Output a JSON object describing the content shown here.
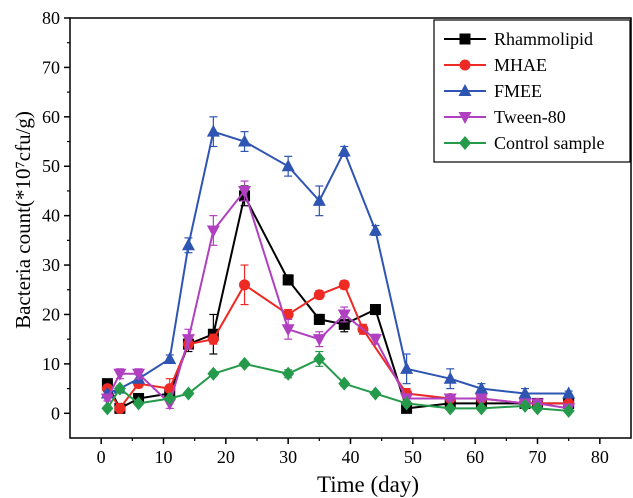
{
  "chart_data": {
    "type": "line",
    "xlabel": "Time (day)",
    "ylabel": "Bacteria count(*10⁷cfu/g)",
    "xlim": [
      -5,
      85
    ],
    "ylim": [
      -5,
      80
    ],
    "xticks": [
      0,
      10,
      20,
      30,
      40,
      50,
      60,
      70,
      80
    ],
    "yticks": [
      0,
      10,
      20,
      30,
      40,
      50,
      60,
      70,
      80
    ],
    "grid": false,
    "legend_position": "top-right",
    "series": [
      {
        "name": "Rhammolipid",
        "color": "#000000",
        "marker": "square",
        "x": [
          1,
          3,
          6,
          11,
          14,
          18,
          23,
          30,
          35,
          39,
          44,
          49,
          56,
          61,
          68,
          70,
          75
        ],
        "y": [
          6,
          1,
          3,
          4,
          14,
          16,
          44,
          27,
          19,
          18,
          21,
          1,
          2,
          2,
          2,
          2,
          2
        ],
        "err": [
          0.5,
          0.3,
          0.5,
          0.5,
          1.5,
          4,
          2,
          1,
          1,
          1.5,
          1,
          0.4,
          0.4,
          0.4,
          0.4,
          0.4,
          0.4
        ]
      },
      {
        "name": "MHAE",
        "color": "#ee2a24",
        "marker": "circle",
        "x": [
          1,
          3,
          6,
          11,
          14,
          18,
          23,
          30,
          35,
          39,
          42,
          49,
          56,
          61,
          68,
          70,
          75
        ],
        "y": [
          5,
          1,
          6,
          5,
          14,
          15,
          26,
          20,
          24,
          26,
          17,
          4,
          3,
          3,
          2,
          2,
          2
        ],
        "err": [
          0.5,
          0.3,
          0.8,
          2,
          1,
          1,
          4,
          1,
          0.8,
          0.8,
          1,
          1,
          0.5,
          0.5,
          0.5,
          0.5,
          0.5
        ]
      },
      {
        "name": "FMEE",
        "color": "#2f55b3",
        "marker": "triangle-up",
        "x": [
          1,
          3,
          6,
          11,
          14,
          18,
          23,
          30,
          35,
          39,
          44,
          49,
          56,
          61,
          68,
          75
        ],
        "y": [
          4,
          5,
          7,
          11,
          34,
          57,
          55,
          50,
          43,
          53,
          37,
          9,
          7,
          5,
          4,
          4
        ],
        "err": [
          0.5,
          0.5,
          0.8,
          0.8,
          1.5,
          3,
          2,
          2,
          3,
          1,
          1,
          3,
          2,
          1,
          1,
          0.5
        ]
      },
      {
        "name": "Tween-80",
        "color": "#b040c0",
        "marker": "triangle-down",
        "x": [
          1,
          3,
          6,
          11,
          14,
          18,
          23,
          30,
          35,
          39,
          44,
          49,
          56,
          61,
          68,
          70,
          75
        ],
        "y": [
          3,
          8,
          8,
          2,
          15,
          37,
          45,
          17,
          15,
          20,
          15,
          3,
          3,
          3,
          2,
          2,
          1
        ],
        "err": [
          0.5,
          1,
          1,
          1,
          2,
          3,
          2,
          2,
          1.5,
          1.5,
          1,
          0.5,
          0.5,
          0.5,
          0.5,
          0.5,
          0.5
        ]
      },
      {
        "name": "Control sample",
        "color": "#259a4a",
        "marker": "diamond",
        "x": [
          1,
          3,
          6,
          11,
          14,
          18,
          23,
          30,
          35,
          39,
          44,
          49,
          56,
          61,
          68,
          70,
          75
        ],
        "y": [
          1,
          5,
          2,
          3,
          4,
          8,
          10,
          8,
          11,
          6,
          4,
          2,
          1,
          1,
          1.5,
          1,
          0.5
        ],
        "err": [
          0.3,
          0.5,
          0.3,
          0.3,
          0.3,
          0.5,
          0.5,
          0.8,
          1.5,
          0.5,
          0.3,
          0.3,
          0.3,
          0.3,
          0.3,
          0.3,
          0.3
        ]
      }
    ]
  }
}
